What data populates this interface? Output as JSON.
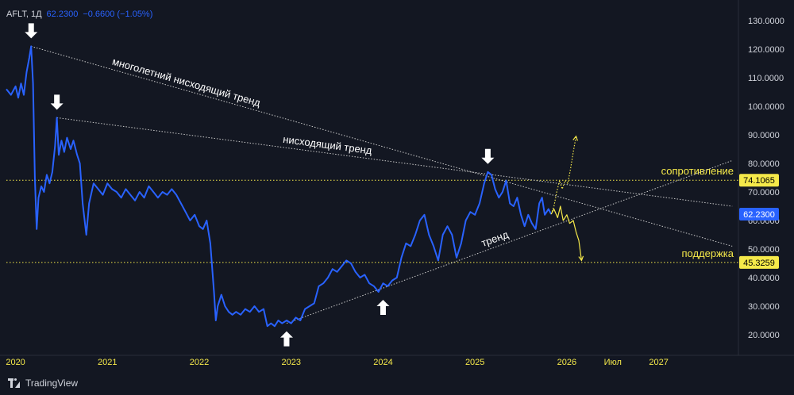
{
  "header": {
    "symbol": "AFLT, 1Д",
    "price": "62.2300",
    "change": "−0.6600 (−1.05%)"
  },
  "footer": {
    "brand": "TradingView"
  },
  "colors": {
    "background": "#131722",
    "price_line": "#2962ff",
    "projection": "#f5e94a",
    "trend_lines": "#c8c8c8",
    "level_lines": "#f5e94a",
    "axis_text": "#d1d4dc",
    "year_text": "#f5e94a"
  },
  "chart_data": {
    "type": "line",
    "y_scale": "linear",
    "ylim": [
      15,
      135
    ],
    "xlim": [
      2019.9,
      2027.85
    ],
    "y_ticks": [
      {
        "value": 20,
        "label": "20.0000"
      },
      {
        "value": 30,
        "label": "30.0000"
      },
      {
        "value": 40,
        "label": "40.0000"
      },
      {
        "value": 50,
        "label": "50.0000"
      },
      {
        "value": 60,
        "label": "60.0000"
      },
      {
        "value": 70,
        "label": "70.0000"
      },
      {
        "value": 80,
        "label": "80.0000"
      },
      {
        "value": 90,
        "label": "90.0000"
      },
      {
        "value": 100,
        "label": "100.0000"
      },
      {
        "value": 110,
        "label": "110.0000"
      },
      {
        "value": 120,
        "label": "120.0000"
      },
      {
        "value": 130,
        "label": "130.0000"
      }
    ],
    "x_ticks": [
      {
        "value": 2020.0,
        "label": "2020"
      },
      {
        "value": 2021.0,
        "label": "2021"
      },
      {
        "value": 2022.0,
        "label": "2022"
      },
      {
        "value": 2023.0,
        "label": "2023"
      },
      {
        "value": 2024.0,
        "label": "2024"
      },
      {
        "value": 2025.0,
        "label": "2025"
      },
      {
        "value": 2026.0,
        "label": "2026"
      },
      {
        "value": 2026.5,
        "label": "Июл"
      },
      {
        "value": 2027.0,
        "label": "2027"
      }
    ],
    "series": [
      {
        "points": [
          [
            2019.9,
            106
          ],
          [
            2019.95,
            104
          ],
          [
            2020.0,
            107
          ],
          [
            2020.03,
            103
          ],
          [
            2020.06,
            108
          ],
          [
            2020.09,
            104
          ],
          [
            2020.12,
            112
          ],
          [
            2020.15,
            117
          ],
          [
            2020.17,
            121
          ],
          [
            2020.19,
            108
          ],
          [
            2020.21,
            75
          ],
          [
            2020.23,
            57
          ],
          [
            2020.25,
            68
          ],
          [
            2020.28,
            72
          ],
          [
            2020.31,
            70
          ],
          [
            2020.34,
            76
          ],
          [
            2020.37,
            73
          ],
          [
            2020.4,
            77
          ],
          [
            2020.43,
            86
          ],
          [
            2020.45,
            96
          ],
          [
            2020.47,
            83
          ],
          [
            2020.5,
            88
          ],
          [
            2020.53,
            84
          ],
          [
            2020.56,
            89
          ],
          [
            2020.6,
            85
          ],
          [
            2020.63,
            88
          ],
          [
            2020.67,
            83
          ],
          [
            2020.7,
            80
          ],
          [
            2020.73,
            66
          ],
          [
            2020.77,
            55
          ],
          [
            2020.8,
            66
          ],
          [
            2020.85,
            73
          ],
          [
            2020.9,
            71
          ],
          [
            2020.95,
            69
          ],
          [
            2021.0,
            73
          ],
          [
            2021.05,
            71
          ],
          [
            2021.1,
            70
          ],
          [
            2021.15,
            68
          ],
          [
            2021.2,
            71
          ],
          [
            2021.25,
            69
          ],
          [
            2021.3,
            67
          ],
          [
            2021.35,
            70
          ],
          [
            2021.4,
            68
          ],
          [
            2021.45,
            72
          ],
          [
            2021.5,
            70
          ],
          [
            2021.55,
            68
          ],
          [
            2021.6,
            70
          ],
          [
            2021.65,
            69
          ],
          [
            2021.7,
            71
          ],
          [
            2021.75,
            69
          ],
          [
            2021.8,
            66
          ],
          [
            2021.85,
            63
          ],
          [
            2021.9,
            60
          ],
          [
            2021.95,
            62
          ],
          [
            2022.0,
            58
          ],
          [
            2022.04,
            57
          ],
          [
            2022.08,
            60
          ],
          [
            2022.12,
            52
          ],
          [
            2022.16,
            35
          ],
          [
            2022.18,
            25
          ],
          [
            2022.2,
            30
          ],
          [
            2022.24,
            34
          ],
          [
            2022.28,
            30
          ],
          [
            2022.32,
            28
          ],
          [
            2022.36,
            27
          ],
          [
            2022.4,
            28
          ],
          [
            2022.45,
            27
          ],
          [
            2022.5,
            29
          ],
          [
            2022.55,
            28
          ],
          [
            2022.6,
            30
          ],
          [
            2022.65,
            28
          ],
          [
            2022.7,
            29
          ],
          [
            2022.74,
            23
          ],
          [
            2022.78,
            24
          ],
          [
            2022.82,
            23
          ],
          [
            2022.86,
            25
          ],
          [
            2022.9,
            24
          ],
          [
            2022.95,
            25
          ],
          [
            2023.0,
            24
          ],
          [
            2023.05,
            26
          ],
          [
            2023.1,
            25
          ],
          [
            2023.15,
            29
          ],
          [
            2023.2,
            30
          ],
          [
            2023.25,
            31
          ],
          [
            2023.3,
            37
          ],
          [
            2023.35,
            38
          ],
          [
            2023.4,
            40
          ],
          [
            2023.45,
            43
          ],
          [
            2023.5,
            42
          ],
          [
            2023.55,
            44
          ],
          [
            2023.6,
            46
          ],
          [
            2023.65,
            45
          ],
          [
            2023.7,
            42
          ],
          [
            2023.75,
            40
          ],
          [
            2023.8,
            41
          ],
          [
            2023.85,
            38
          ],
          [
            2023.9,
            37
          ],
          [
            2023.95,
            35
          ],
          [
            2024.0,
            38
          ],
          [
            2024.05,
            37
          ],
          [
            2024.1,
            39
          ],
          [
            2024.15,
            40
          ],
          [
            2024.2,
            47
          ],
          [
            2024.25,
            52
          ],
          [
            2024.3,
            51
          ],
          [
            2024.35,
            55
          ],
          [
            2024.4,
            60
          ],
          [
            2024.45,
            62
          ],
          [
            2024.5,
            55
          ],
          [
            2024.55,
            51
          ],
          [
            2024.6,
            46
          ],
          [
            2024.65,
            55
          ],
          [
            2024.7,
            58
          ],
          [
            2024.75,
            55
          ],
          [
            2024.8,
            47
          ],
          [
            2024.85,
            52
          ],
          [
            2024.9,
            60
          ],
          [
            2024.95,
            63
          ],
          [
            2025.0,
            62
          ],
          [
            2025.05,
            66
          ],
          [
            2025.1,
            73
          ],
          [
            2025.14,
            77
          ],
          [
            2025.18,
            76
          ],
          [
            2025.22,
            71
          ],
          [
            2025.26,
            68
          ],
          [
            2025.3,
            70
          ],
          [
            2025.34,
            74
          ],
          [
            2025.38,
            66
          ],
          [
            2025.42,
            65
          ],
          [
            2025.46,
            68
          ],
          [
            2025.5,
            62
          ],
          [
            2025.54,
            58
          ],
          [
            2025.58,
            62
          ],
          [
            2025.62,
            59
          ],
          [
            2025.66,
            57
          ],
          [
            2025.7,
            66
          ],
          [
            2025.73,
            68
          ],
          [
            2025.76,
            62
          ],
          [
            2025.8,
            64
          ],
          [
            2025.83,
            62.23
          ]
        ]
      },
      {
        "points": [
          [
            2025.83,
            62.23
          ],
          [
            2025.86,
            64
          ],
          [
            2025.9,
            61
          ],
          [
            2025.93,
            65
          ],
          [
            2025.96,
            60
          ],
          [
            2026.0,
            62
          ],
          [
            2026.03,
            59
          ],
          [
            2026.07,
            60
          ],
          [
            2026.1,
            56
          ],
          [
            2026.13,
            53
          ],
          [
            2026.16,
            46
          ]
        ]
      },
      {
        "points": [
          [
            2025.83,
            62.23
          ],
          [
            2025.86,
            65
          ],
          [
            2025.89,
            70
          ],
          [
            2025.92,
            74
          ],
          [
            2025.95,
            71
          ],
          [
            2025.98,
            74
          ],
          [
            2026.01,
            73
          ],
          [
            2026.04,
            78
          ],
          [
            2026.07,
            84
          ],
          [
            2026.1,
            89.5
          ]
        ]
      }
    ],
    "trend_lines": [
      {
        "label": "многолетний нисходящий тренд",
        "from": [
          2020.17,
          121
        ],
        "to": [
          2027.8,
          51
        ]
      },
      {
        "label": "нисходящий тренд",
        "from": [
          2020.45,
          96
        ],
        "to": [
          2027.8,
          65
        ]
      },
      {
        "label": "тренд",
        "from": [
          2022.95,
          24
        ],
        "to": [
          2027.8,
          81
        ]
      }
    ],
    "levels": [
      {
        "label": "сопротивление",
        "value": 74.1065,
        "tag": "74.1065"
      },
      {
        "label": "поддержка",
        "value": 45.3259,
        "tag": "45.3259"
      }
    ],
    "current_price": {
      "value": 62.23,
      "tag": "62.2300"
    },
    "markers": [
      {
        "x": 2020.17,
        "y": 121,
        "direction": "down"
      },
      {
        "x": 2020.45,
        "y": 96,
        "direction": "down"
      },
      {
        "x": 2025.14,
        "y": 77,
        "direction": "down"
      },
      {
        "x": 2022.95,
        "y": 24,
        "direction": "up"
      },
      {
        "x": 2024.0,
        "y": 35,
        "direction": "up"
      }
    ]
  }
}
